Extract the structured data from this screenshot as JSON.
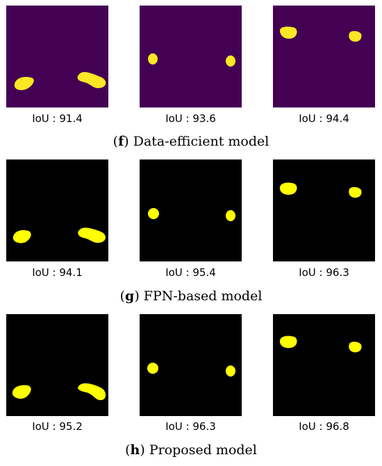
{
  "rows": [
    {
      "letter": "f",
      "title": "Data-efficient model",
      "background": "#440154",
      "mask_color": "#fde725",
      "panels": [
        {
          "iou": "IoU : 91.4"
        },
        {
          "iou": "IoU : 93.6"
        },
        {
          "iou": "IoU : 94.4"
        }
      ]
    },
    {
      "letter": "g",
      "title": "FPN-based model",
      "background": "#000000",
      "mask_color": "#ffff00",
      "panels": [
        {
          "iou": "IoU : 94.1"
        },
        {
          "iou": "IoU : 95.4"
        },
        {
          "iou": "IoU : 96.3"
        }
      ]
    },
    {
      "letter": "h",
      "title": "Proposed model",
      "background": "#000000",
      "mask_color": "#ffff00",
      "panels": [
        {
          "iou": "IoU : 95.2"
        },
        {
          "iou": "IoU : 96.3"
        },
        {
          "iou": "IoU : 96.8"
        }
      ]
    }
  ]
}
